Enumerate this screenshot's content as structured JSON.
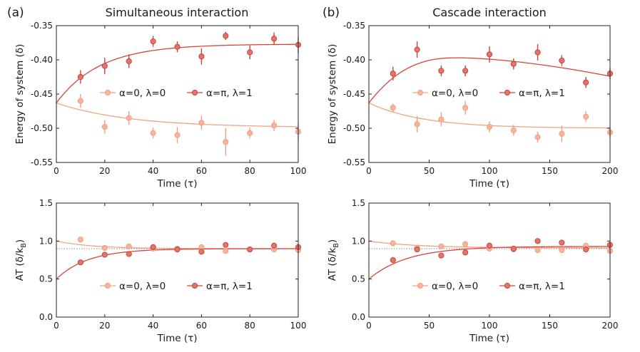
{
  "figure": {
    "panel_a_label": "(a)",
    "panel_b_label": "(b)",
    "panel_a_title": "Simultaneous interaction",
    "panel_b_title": "Cascade interaction"
  },
  "colors": {
    "light": "#f6b49b",
    "light_stroke": "#eea084",
    "dark": "#e0756b",
    "dark_stroke": "#c9443c",
    "light_curve": "#f2a383",
    "dark_curve": "#d9443a"
  },
  "chart_data": [
    {
      "id": "a-energy",
      "type": "scatter",
      "xlabel": "Time (τ)",
      "ylabel": "Energy of system (δ)",
      "xlim": [
        0,
        100
      ],
      "ylim": [
        -0.55,
        -0.35
      ],
      "xticks": [
        0,
        20,
        40,
        60,
        80,
        100
      ],
      "yticks": [
        -0.55,
        -0.5,
        -0.45,
        -0.4,
        -0.35
      ],
      "xtick_labels": [
        "0",
        "20",
        "40",
        "60",
        "80",
        "100"
      ],
      "ytick_labels": [
        "-0.55",
        "-0.50",
        "-0.45",
        "-0.40",
        "-0.35"
      ],
      "legend": [
        "α=0, λ=0",
        "α=π, λ=1"
      ],
      "series": [
        {
          "name": "α=0, λ=0",
          "style": "light",
          "x": [
            10,
            20,
            30,
            40,
            50,
            60,
            70,
            80,
            90,
            100
          ],
          "y": [
            -0.46,
            -0.498,
            -0.485,
            -0.507,
            -0.51,
            -0.492,
            -0.52,
            -0.507,
            -0.496,
            -0.505
          ],
          "err": [
            0.01,
            0.01,
            0.01,
            0.008,
            0.012,
            0.01,
            0.02,
            0.008,
            0.008,
            0.012
          ],
          "fit": {
            "y0": -0.463,
            "yinf": -0.499,
            "tau": 30
          }
        },
        {
          "name": "α=π, λ=1",
          "style": "dark",
          "x": [
            10,
            20,
            30,
            40,
            50,
            60,
            70,
            80,
            90,
            100
          ],
          "y": [
            -0.425,
            -0.409,
            -0.402,
            -0.373,
            -0.381,
            -0.395,
            -0.365,
            -0.389,
            -0.369,
            -0.378
          ],
          "err": [
            0.01,
            0.012,
            0.01,
            0.008,
            0.008,
            0.012,
            0.006,
            0.01,
            0.009,
            0.012
          ],
          "fit": {
            "y0": -0.463,
            "yinf": -0.377,
            "tau": 18
          }
        }
      ]
    },
    {
      "id": "b-energy",
      "type": "scatter",
      "xlabel": "Time (τ)",
      "ylabel": "Energy of system (δ)",
      "xlim": [
        0,
        200
      ],
      "ylim": [
        -0.55,
        -0.35
      ],
      "xticks": [
        0,
        50,
        100,
        150,
        200
      ],
      "yticks": [
        -0.55,
        -0.5,
        -0.45,
        -0.4,
        -0.35
      ],
      "xtick_labels": [
        "0",
        "50",
        "100",
        "150",
        "200"
      ],
      "ytick_labels": [
        "-0.55",
        "-0.50",
        "-0.45",
        "-0.40",
        "-0.35"
      ],
      "legend": [
        "α=0, λ=0",
        "α=π, λ=1"
      ],
      "series": [
        {
          "name": "α=0, λ=0",
          "style": "light",
          "x": [
            20,
            40,
            60,
            80,
            100,
            120,
            140,
            160,
            180,
            200
          ],
          "y": [
            -0.47,
            -0.494,
            -0.487,
            -0.47,
            -0.498,
            -0.503,
            -0.513,
            -0.508,
            -0.483,
            -0.506
          ],
          "err": [
            0.006,
            0.012,
            0.01,
            0.01,
            0.008,
            0.008,
            0.008,
            0.012,
            0.008,
            0.008
          ],
          "fit": {
            "y0": -0.463,
            "yinf": -0.5,
            "tau": 45
          }
        },
        {
          "name": "α=π, λ=1",
          "style": "dark",
          "x": [
            20,
            40,
            60,
            80,
            100,
            120,
            140,
            160,
            180,
            200
          ],
          "y": [
            -0.42,
            -0.385,
            -0.416,
            -0.416,
            -0.392,
            -0.406,
            -0.389,
            -0.401,
            -0.433,
            -0.42
          ],
          "err": [
            0.01,
            0.012,
            0.008,
            0.008,
            0.012,
            0.008,
            0.012,
            0.008,
            0.008,
            0.008
          ],
          "fit": {
            "peak_t": 75,
            "peak_y": -0.397,
            "end_y": -0.424,
            "start_y": -0.463
          }
        }
      ]
    },
    {
      "id": "a-temperature",
      "type": "scatter",
      "xlabel": "Time (τ)",
      "ylabel": "AT (δ/k",
      "ylabel_sub": "B",
      "ylabel_end": ")",
      "xlim": [
        0,
        100
      ],
      "ylim": [
        0.0,
        1.5
      ],
      "xticks": [
        0,
        20,
        40,
        60,
        80,
        100
      ],
      "yticks": [
        0.0,
        0.5,
        1.0,
        1.5
      ],
      "xtick_labels": [
        "0",
        "20",
        "40",
        "60",
        "80",
        "100"
      ],
      "ytick_labels": [
        "0.0",
        "0.5",
        "1.0",
        "1.5"
      ],
      "reference_line": 0.9,
      "legend": [
        "α=0, λ=0",
        "α=π, λ=1"
      ],
      "series": [
        {
          "name": "α=0, λ=0",
          "style": "light",
          "x": [
            10,
            20,
            30,
            40,
            50,
            60,
            70,
            80,
            90,
            100
          ],
          "y": [
            1.02,
            0.91,
            0.93,
            0.9,
            0.9,
            0.92,
            0.87,
            0.89,
            0.89,
            0.88
          ],
          "err": [
            0.0,
            0.0,
            0.0,
            0.0,
            0.0,
            0.0,
            0.0,
            0.0,
            0.0,
            0.0
          ],
          "fit": {
            "y0": 1.0,
            "yinf": 0.9,
            "tau": 15
          }
        },
        {
          "name": "α=π, λ=1",
          "style": "dark",
          "x": [
            10,
            20,
            30,
            40,
            50,
            60,
            70,
            80,
            90,
            100
          ],
          "y": [
            0.72,
            0.82,
            0.83,
            0.92,
            0.89,
            0.86,
            0.95,
            0.89,
            0.94,
            0.92
          ],
          "err": [
            0.0,
            0.03,
            0.03,
            0.0,
            0.0,
            0.0,
            0.0,
            0.0,
            0.0,
            0.0
          ],
          "fit": {
            "y0": 0.5,
            "yinf": 0.9,
            "tau": 13
          }
        }
      ]
    },
    {
      "id": "b-temperature",
      "type": "scatter",
      "xlabel": "Time (τ)",
      "ylabel": "AT (δ/k",
      "ylabel_sub": "B",
      "ylabel_end": ")",
      "xlim": [
        0,
        200
      ],
      "ylim": [
        0.0,
        1.5
      ],
      "xticks": [
        0,
        50,
        100,
        150,
        200
      ],
      "yticks": [
        0.0,
        0.5,
        1.0,
        1.5
      ],
      "xtick_labels": [
        "0",
        "50",
        "100",
        "150",
        "200"
      ],
      "ytick_labels": [
        "0.0",
        "0.5",
        "1.0",
        "1.5"
      ],
      "reference_line": 0.9,
      "legend": [
        "α=0, λ=0",
        "α=π, λ=1"
      ],
      "series": [
        {
          "name": "α=0, λ=0",
          "style": "light",
          "x": [
            20,
            40,
            60,
            80,
            100,
            120,
            140,
            160,
            180,
            200
          ],
          "y": [
            0.97,
            0.91,
            0.93,
            0.96,
            0.9,
            0.89,
            0.88,
            0.88,
            0.94,
            0.87
          ],
          "err": [
            0.0,
            0.0,
            0.0,
            0.0,
            0.0,
            0.0,
            0.0,
            0.0,
            0.0,
            0.0
          ],
          "fit": {
            "y0": 1.0,
            "yinf": 0.91,
            "tau": 40
          }
        },
        {
          "name": "α=π, λ=1",
          "style": "dark",
          "x": [
            20,
            40,
            60,
            80,
            100,
            120,
            140,
            160,
            180,
            200
          ],
          "y": [
            0.75,
            0.89,
            0.81,
            0.85,
            0.94,
            0.9,
            1.0,
            0.98,
            0.89,
            0.95
          ],
          "err": [
            0.0,
            0.0,
            0.03,
            0.0,
            0.04,
            0.0,
            0.03,
            0.0,
            0.0,
            0.0
          ],
          "fit": {
            "y0": 0.5,
            "yinf": 0.93,
            "tau": 32
          }
        }
      ]
    }
  ]
}
